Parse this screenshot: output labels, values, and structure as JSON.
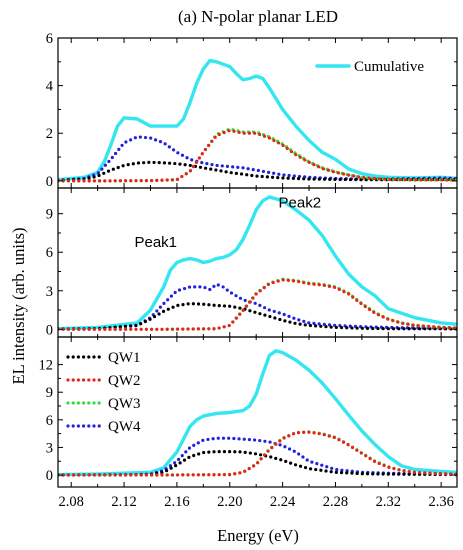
{
  "chart_data": {
    "type": "line",
    "title": "(a) N-polar planar LED",
    "xlabel": "Energy (eV)",
    "ylabel": "EL intensity (arb. units)",
    "xlim": [
      2.07,
      2.372
    ],
    "xticks": [
      2.08,
      2.12,
      2.16,
      2.2,
      2.24,
      2.28,
      2.32,
      2.36
    ],
    "xtick_labels": [
      "2.08",
      "2.12",
      "2.16",
      "2.20",
      "2.24",
      "2.28",
      "2.32",
      "2.36"
    ],
    "colors": {
      "Cumulative": "#33e6f0",
      "QW1": "#000000",
      "QW2": "#e8231e",
      "QW3": "#33dd33",
      "QW4": "#2222dd"
    },
    "panels": [
      {
        "ylim": [
          -0.3,
          6.0
        ],
        "yticks": [
          0,
          2,
          4,
          6
        ],
        "ytick_labels": [
          "0",
          "2",
          "4",
          "6"
        ],
        "legend": {
          "position": "top-right",
          "entries": [
            "Cumulative"
          ]
        },
        "annotations": [],
        "series": [
          {
            "name": "Cumulative",
            "style": "solid",
            "x": [
              2.07,
              2.09,
              2.1,
              2.105,
              2.11,
              2.115,
              2.12,
              2.13,
              2.14,
              2.145,
              2.15,
              2.16,
              2.165,
              2.17,
              2.175,
              2.18,
              2.185,
              2.19,
              2.195,
              2.2,
              2.205,
              2.21,
              2.215,
              2.22,
              2.225,
              2.23,
              2.24,
              2.25,
              2.26,
              2.27,
              2.28,
              2.29,
              2.3,
              2.31,
              2.32,
              2.34,
              2.36,
              2.372
            ],
            "y": [
              0.05,
              0.15,
              0.35,
              0.8,
              1.5,
              2.3,
              2.65,
              2.6,
              2.3,
              2.3,
              2.3,
              2.3,
              2.6,
              3.3,
              4.1,
              4.7,
              5.05,
              5.0,
              4.9,
              4.8,
              4.5,
              4.25,
              4.3,
              4.4,
              4.3,
              3.9,
              3.0,
              2.3,
              1.7,
              1.2,
              0.9,
              0.5,
              0.3,
              0.2,
              0.15,
              0.12,
              0.15,
              0.1
            ]
          },
          {
            "name": "QW4",
            "style": "dotted",
            "x": [
              2.07,
              2.09,
              2.1,
              2.11,
              2.12,
              2.13,
              2.14,
              2.15,
              2.16,
              2.17,
              2.18,
              2.19,
              2.2,
              2.21,
              2.22,
              2.23,
              2.24,
              2.26,
              2.28,
              2.3,
              2.32,
              2.34,
              2.36,
              2.372
            ],
            "y": [
              0.02,
              0.1,
              0.3,
              0.9,
              1.6,
              1.85,
              1.8,
              1.6,
              1.2,
              0.9,
              0.75,
              0.65,
              0.6,
              0.55,
              0.45,
              0.35,
              0.25,
              0.15,
              0.1,
              0.08,
              0.08,
              0.1,
              0.12,
              0.1
            ]
          },
          {
            "name": "QW1",
            "style": "dotted",
            "x": [
              2.07,
              2.09,
              2.1,
              2.11,
              2.12,
              2.13,
              2.14,
              2.15,
              2.16,
              2.17,
              2.18,
              2.19,
              2.2,
              2.21,
              2.22,
              2.24,
              2.26,
              2.28,
              2.3,
              2.32,
              2.34,
              2.36,
              2.372
            ],
            "y": [
              0.02,
              0.06,
              0.2,
              0.45,
              0.65,
              0.75,
              0.78,
              0.76,
              0.72,
              0.65,
              0.55,
              0.45,
              0.35,
              0.28,
              0.2,
              0.12,
              0.08,
              0.06,
              0.05,
              0.05,
              0.06,
              0.06,
              0.05
            ]
          },
          {
            "name": "QW3",
            "style": "dotted",
            "x": [
              2.07,
              2.1,
              2.14,
              2.16,
              2.17,
              2.18,
              2.19,
              2.2,
              2.21,
              2.22,
              2.23,
              2.24,
              2.25,
              2.26,
              2.27,
              2.28,
              2.29,
              2.3,
              2.31,
              2.32,
              2.34,
              2.36,
              2.372
            ],
            "y": [
              0.0,
              0.0,
              0.01,
              0.05,
              0.4,
              1.2,
              1.95,
              2.18,
              2.05,
              2.05,
              1.85,
              1.55,
              1.15,
              0.8,
              0.55,
              0.38,
              0.25,
              0.15,
              0.1,
              0.06,
              0.04,
              0.04,
              0.03
            ]
          },
          {
            "name": "QW2",
            "style": "dotted",
            "x": [
              2.07,
              2.1,
              2.14,
              2.16,
              2.17,
              2.18,
              2.19,
              2.2,
              2.21,
              2.22,
              2.23,
              2.24,
              2.25,
              2.26,
              2.27,
              2.28,
              2.29,
              2.3,
              2.31,
              2.32,
              2.34,
              2.36,
              2.372
            ],
            "y": [
              0.0,
              0.0,
              0.01,
              0.05,
              0.4,
              1.2,
              1.9,
              2.12,
              2.0,
              2.0,
              1.8,
              1.5,
              1.1,
              0.78,
              0.52,
              0.36,
              0.24,
              0.14,
              0.1,
              0.06,
              0.04,
              0.04,
              0.03
            ]
          }
        ]
      },
      {
        "ylim": [
          -0.6,
          11.0
        ],
        "yticks": [
          0,
          3,
          6,
          9
        ],
        "ytick_labels": [
          "0",
          "3",
          "6",
          "9"
        ],
        "legend": null,
        "annotations": [
          {
            "text": "Peak1",
            "x": 2.144,
            "y": 6.4
          },
          {
            "text": "Peak2",
            "x": 2.253,
            "y": 9.5
          }
        ],
        "series": [
          {
            "name": "Cumulative",
            "style": "solid",
            "x": [
              2.07,
              2.1,
              2.13,
              2.14,
              2.15,
              2.155,
              2.16,
              2.165,
              2.17,
              2.175,
              2.18,
              2.185,
              2.19,
              2.195,
              2.2,
              2.205,
              2.21,
              2.215,
              2.22,
              2.225,
              2.23,
              2.24,
              2.25,
              2.26,
              2.27,
              2.28,
              2.29,
              2.3,
              2.31,
              2.32,
              2.34,
              2.36,
              2.372
            ],
            "y": [
              0.05,
              0.15,
              0.5,
              1.5,
              3.3,
              4.6,
              5.2,
              5.4,
              5.5,
              5.4,
              5.2,
              5.3,
              5.5,
              5.6,
              5.8,
              6.2,
              7.0,
              8.1,
              9.3,
              10.0,
              10.3,
              10.0,
              9.3,
              8.5,
              7.3,
              5.7,
              4.3,
              3.3,
              2.6,
              1.6,
              0.9,
              0.5,
              0.4
            ]
          },
          {
            "name": "QW4",
            "style": "dotted",
            "x": [
              2.07,
              2.1,
              2.13,
              2.14,
              2.15,
              2.16,
              2.17,
              2.18,
              2.185,
              2.19,
              2.195,
              2.2,
              2.21,
              2.22,
              2.23,
              2.24,
              2.25,
              2.26,
              2.28,
              2.3,
              2.32,
              2.34,
              2.36,
              2.372
            ],
            "y": [
              0.02,
              0.05,
              0.3,
              0.9,
              2.0,
              3.0,
              3.3,
              3.3,
              3.1,
              3.5,
              3.3,
              2.9,
              2.3,
              2.0,
              1.5,
              1.2,
              0.8,
              0.5,
              0.3,
              0.2,
              0.15,
              0.1,
              0.1,
              0.1
            ]
          },
          {
            "name": "QW1",
            "style": "dotted",
            "x": [
              2.07,
              2.1,
              2.13,
              2.14,
              2.15,
              2.16,
              2.17,
              2.18,
              2.19,
              2.2,
              2.21,
              2.22,
              2.23,
              2.24,
              2.25,
              2.26,
              2.28,
              2.3,
              2.32,
              2.34,
              2.36,
              2.372
            ],
            "y": [
              0.02,
              0.05,
              0.3,
              0.8,
              1.4,
              1.85,
              2.0,
              1.95,
              1.85,
              1.8,
              1.6,
              1.3,
              1.0,
              0.7,
              0.45,
              0.3,
              0.15,
              0.08,
              0.05,
              0.04,
              0.04,
              0.03
            ]
          },
          {
            "name": "QW3",
            "style": "dotted",
            "x": [
              2.07,
              2.1,
              2.15,
              2.19,
              2.2,
              2.21,
              2.22,
              2.23,
              2.24,
              2.25,
              2.26,
              2.27,
              2.28,
              2.29,
              2.3,
              2.31,
              2.32,
              2.33,
              2.34,
              2.36,
              2.372
            ],
            "y": [
              0.0,
              0.0,
              0.0,
              0.05,
              0.3,
              1.5,
              2.8,
              3.6,
              3.9,
              3.8,
              3.6,
              3.5,
              3.3,
              2.8,
              2.0,
              1.3,
              0.8,
              0.5,
              0.3,
              0.15,
              0.1
            ]
          },
          {
            "name": "QW2",
            "style": "dotted",
            "x": [
              2.07,
              2.1,
              2.15,
              2.19,
              2.2,
              2.21,
              2.22,
              2.23,
              2.24,
              2.25,
              2.26,
              2.27,
              2.28,
              2.29,
              2.3,
              2.31,
              2.32,
              2.33,
              2.34,
              2.36,
              2.372
            ],
            "y": [
              0.0,
              0.0,
              0.0,
              0.05,
              0.3,
              1.45,
              2.75,
              3.55,
              3.85,
              3.75,
              3.55,
              3.45,
              3.25,
              2.75,
              1.95,
              1.25,
              0.78,
              0.48,
              0.3,
              0.15,
              0.1
            ]
          }
        ]
      },
      {
        "ylim": [
          -1.3,
          15.0
        ],
        "yticks": [
          0,
          3,
          6,
          9,
          12
        ],
        "ytick_labels": [
          "0",
          "3",
          "6",
          "9",
          "12"
        ],
        "legend": {
          "position": "top-left",
          "entries": [
            "QW1",
            "QW2",
            "QW3",
            "QW4"
          ]
        },
        "annotations": [],
        "series": [
          {
            "name": "Cumulative",
            "style": "solid",
            "x": [
              2.07,
              2.1,
              2.14,
              2.15,
              2.16,
              2.17,
              2.175,
              2.18,
              2.19,
              2.2,
              2.21,
              2.215,
              2.22,
              2.225,
              2.23,
              2.235,
              2.24,
              2.25,
              2.26,
              2.27,
              2.28,
              2.29,
              2.3,
              2.31,
              2.32,
              2.33,
              2.34,
              2.36,
              2.372
            ],
            "y": [
              0.05,
              0.1,
              0.3,
              0.8,
              2.5,
              5.3,
              6.0,
              6.4,
              6.7,
              6.8,
              7.0,
              7.5,
              8.8,
              11.0,
              13.0,
              13.5,
              13.3,
              12.5,
              11.4,
              10.0,
              8.3,
              6.5,
              4.8,
              3.3,
              2.0,
              1.0,
              0.6,
              0.4,
              0.3
            ]
          },
          {
            "name": "QW4",
            "style": "dotted",
            "x": [
              2.07,
              2.12,
              2.14,
              2.15,
              2.16,
              2.17,
              2.18,
              2.19,
              2.2,
              2.21,
              2.22,
              2.23,
              2.24,
              2.25,
              2.26,
              2.28,
              2.3,
              2.32,
              2.34,
              2.36,
              2.372
            ],
            "y": [
              0.0,
              0.02,
              0.1,
              0.5,
              1.5,
              3.0,
              3.8,
              4.0,
              4.0,
              3.9,
              3.8,
              3.6,
              3.2,
              2.5,
              1.5,
              0.6,
              0.3,
              0.2,
              0.15,
              0.1,
              0.1
            ]
          },
          {
            "name": "QW1",
            "style": "dotted",
            "x": [
              2.07,
              2.14,
              2.15,
              2.16,
              2.17,
              2.18,
              2.19,
              2.2,
              2.21,
              2.22,
              2.23,
              2.24,
              2.25,
              2.26,
              2.28,
              2.3,
              2.32,
              2.34,
              2.36,
              2.372
            ],
            "y": [
              0.0,
              0.05,
              0.3,
              1.1,
              2.0,
              2.45,
              2.55,
              2.55,
              2.5,
              2.3,
              2.0,
              1.6,
              1.1,
              0.7,
              0.3,
              0.15,
              0.1,
              0.08,
              0.06,
              0.05
            ]
          },
          {
            "name": "QW3",
            "style": "dotted",
            "x": [
              2.07,
              2.15,
              2.2,
              2.21,
              2.22,
              2.23,
              2.24,
              2.25,
              2.26,
              2.27,
              2.28,
              2.29,
              2.3,
              2.31,
              2.32,
              2.33,
              2.34,
              2.36,
              2.372
            ],
            "y": [
              0.0,
              0.0,
              0.05,
              0.3,
              1.2,
              2.8,
              4.0,
              4.6,
              4.7,
              4.5,
              4.1,
              3.3,
              2.4,
              1.5,
              0.9,
              0.5,
              0.3,
              0.15,
              0.1
            ]
          },
          {
            "name": "QW2",
            "style": "dotted",
            "x": [
              2.07,
              2.15,
              2.2,
              2.21,
              2.22,
              2.23,
              2.24,
              2.25,
              2.26,
              2.27,
              2.28,
              2.29,
              2.3,
              2.31,
              2.32,
              2.33,
              2.34,
              2.36,
              2.372
            ],
            "y": [
              0.0,
              0.0,
              0.05,
              0.3,
              1.15,
              2.75,
              3.95,
              4.6,
              4.65,
              4.45,
              4.05,
              3.25,
              2.35,
              1.45,
              0.85,
              0.5,
              0.3,
              0.15,
              0.1
            ]
          }
        ]
      }
    ]
  }
}
